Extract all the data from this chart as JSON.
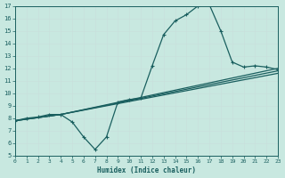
{
  "xlabel": "Humidex (Indice chaleur)",
  "xlim": [
    0,
    23
  ],
  "ylim": [
    5,
    17
  ],
  "xticks": [
    0,
    1,
    2,
    3,
    4,
    5,
    6,
    7,
    8,
    9,
    10,
    11,
    12,
    13,
    14,
    15,
    16,
    17,
    18,
    19,
    20,
    21,
    22,
    23
  ],
  "yticks": [
    5,
    6,
    7,
    8,
    9,
    10,
    11,
    12,
    13,
    14,
    15,
    16,
    17
  ],
  "bg_color": "#c8e8e0",
  "grid_color": "#d8ecE8",
  "line_color": "#1a5f5f",
  "curve1_x": [
    0,
    1,
    2,
    3,
    4,
    5,
    6,
    7,
    8,
    9,
    10,
    11,
    12,
    13,
    14,
    15,
    16,
    17,
    18,
    19,
    20,
    21,
    22,
    23
  ],
  "curve1_y": [
    7.8,
    8.0,
    8.1,
    8.3,
    8.3,
    7.7,
    6.5,
    5.5,
    6.5,
    9.3,
    9.5,
    9.6,
    12.2,
    14.7,
    15.8,
    16.3,
    17.0,
    17.1,
    15.0,
    12.5,
    12.1,
    12.2,
    12.1,
    11.9
  ],
  "curve2_x": [
    0,
    4,
    23
  ],
  "curve2_y": [
    7.8,
    8.3,
    12.0
  ],
  "curve3_x": [
    0,
    4,
    23
  ],
  "curve3_y": [
    7.8,
    8.3,
    11.8
  ],
  "curve4_x": [
    0,
    4,
    23
  ],
  "curve4_y": [
    7.8,
    8.3,
    11.6
  ]
}
